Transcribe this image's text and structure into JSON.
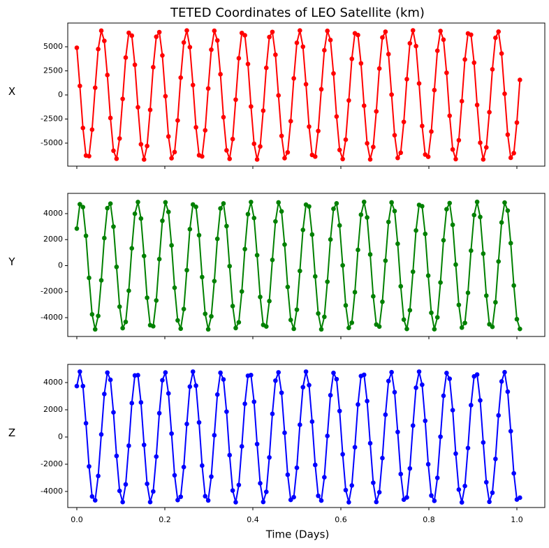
{
  "chart_data": {
    "type": "line",
    "title": "TETED Coordinates of LEO Satellite (km)",
    "xlabel": "Time (Days)",
    "xlim": [
      -0.0206,
      1.0635
    ],
    "xticks": [
      {
        "value": 0,
        "label": "0.0"
      },
      0.2,
      0.4,
      0.6,
      0.8,
      {
        "value": 1,
        "label": "1.0"
      }
    ],
    "x": [
      0,
      0.0069,
      0.0139,
      0.0208,
      0.0278,
      0.0347,
      0.0417,
      0.0486,
      0.0556,
      0.0625,
      0.0694,
      0.0764,
      0.0833,
      0.0903,
      0.0972,
      0.1042,
      0.1111,
      0.1181,
      0.125,
      0.1319,
      0.1389,
      0.1458,
      0.1528,
      0.1597,
      0.1667,
      0.1736,
      0.1806,
      0.1875,
      0.1944,
      0.2014,
      0.2083,
      0.2153,
      0.2222,
      0.2292,
      0.2361,
      0.2431,
      0.25,
      0.2569,
      0.2639,
      0.2708,
      0.2778,
      0.2847,
      0.2917,
      0.2986,
      0.3056,
      0.3125,
      0.3194,
      0.3264,
      0.3333,
      0.3403,
      0.3472,
      0.3542,
      0.3611,
      0.3681,
      0.375,
      0.3819,
      0.3889,
      0.3958,
      0.4028,
      0.4097,
      0.4167,
      0.4236,
      0.4306,
      0.4375,
      0.4444,
      0.4514,
      0.4583,
      0.4653,
      0.4722,
      0.4792,
      0.4861,
      0.4931,
      0.5,
      0.5069,
      0.5139,
      0.5208,
      0.5278,
      0.5347,
      0.5417,
      0.5486,
      0.5556,
      0.5625,
      0.5694,
      0.5764,
      0.5833,
      0.5903,
      0.5972,
      0.6042,
      0.6111,
      0.6181,
      0.625,
      0.6319,
      0.6389,
      0.6458,
      0.6528,
      0.6597,
      0.6667,
      0.6736,
      0.6806,
      0.6875,
      0.6944,
      0.7014,
      0.7083,
      0.7153,
      0.7222,
      0.7292,
      0.7361,
      0.7431,
      0.75,
      0.7569,
      0.7639,
      0.7708,
      0.7778,
      0.7847,
      0.7917,
      0.7986,
      0.8056,
      0.8125,
      0.8194,
      0.8264,
      0.8333,
      0.8403,
      0.8472,
      0.8542,
      0.8611,
      0.8681,
      0.875,
      0.8819,
      0.8889,
      0.8958,
      0.9028,
      0.9097,
      0.9167,
      0.9236,
      0.9306,
      0.9375,
      0.9444,
      0.9514,
      0.9583,
      0.9653,
      0.9722,
      0.9792,
      0.9861,
      0.9931,
      1.0,
      1.0069
    ],
    "panels": [
      {
        "ylabel": "X",
        "color": "#ff0000",
        "ylim": [
          -7391,
          7464
        ],
        "yticks": [
          -5000,
          -2500,
          0,
          2500,
          5000
        ],
        "values": [
          4900,
          940,
          -3430,
          -6290,
          -6350,
          -3600,
          750,
          4760,
          6670,
          5610,
          2070,
          -2390,
          -5790,
          -6620,
          -4520,
          -410,
          3880,
          6450,
          6160,
          3130,
          -1280,
          -5120,
          -6700,
          -5300,
          -1550,
          2880,
          6040,
          6520,
          4100,
          -130,
          -4310,
          -6570,
          -5930,
          -2650,
          1800,
          5450,
          6690,
          4960,
          1030,
          -3360,
          -6260,
          -6380,
          -3670,
          670,
          4700,
          6660,
          5660,
          2150,
          -2310,
          -5750,
          -6630,
          -4580,
          -490,
          3810,
          6430,
          6190,
          3210,
          -1200,
          -5070,
          -6700,
          -5350,
          -1630,
          2810,
          6010,
          6540,
          4170,
          -50,
          -4250,
          -6560,
          -5960,
          -2720,
          1720,
          5410,
          6690,
          5010,
          1110,
          -3290,
          -6230,
          -6400,
          -3740,
          590,
          4640,
          6650,
          5700,
          2230,
          -2240,
          -5710,
          -6650,
          -4640,
          -570,
          3750,
          6400,
          6220,
          3280,
          -1120,
          -5020,
          -6690,
          -5400,
          -1710,
          2740,
          5970,
          6560,
          4240,
          30,
          -4180,
          -6540,
          -6000,
          -2800,
          1640,
          5360,
          6700,
          5070,
          1190,
          -3220,
          -6190,
          -6420,
          -3800,
          500,
          4590,
          6640,
          5740,
          2300,
          -2160,
          -5660,
          -6660,
          -4700,
          -650,
          3680,
          6380,
          6250,
          3350,
          -1040,
          -4960,
          -6690,
          -5450,
          -1790,
          2660,
          5930,
          6570,
          4300,
          120,
          -4120,
          -6520,
          -6040,
          -2870,
          1560
        ]
      },
      {
        "ylabel": "Y",
        "color": "#008000",
        "ylim": [
          -5450,
          5557
        ],
        "yticks": [
          -4000,
          -2000,
          0,
          2000,
          4000
        ],
        "values": [
          2850,
          4720,
          4500,
          2290,
          -940,
          -3750,
          -4900,
          -3870,
          -1130,
          2120,
          4420,
          4770,
          3000,
          -100,
          -3160,
          -4810,
          -4330,
          -1930,
          1330,
          3990,
          4890,
          3620,
          740,
          -2470,
          -4580,
          -4660,
          -2680,
          500,
          3450,
          4870,
          4130,
          1560,
          -1700,
          -4210,
          -4850,
          -3340,
          -350,
          2800,
          4700,
          4520,
          2340,
          -880,
          -3710,
          -4900,
          -3900,
          -1190,
          2060,
          4400,
          4780,
          3040,
          -40,
          -3110,
          -4800,
          -4360,
          -1990,
          1270,
          3960,
          4890,
          3660,
          800,
          -2410,
          -4560,
          -4680,
          -2730,
          440,
          3400,
          4860,
          4170,
          1620,
          -1640,
          -4180,
          -4860,
          -3390,
          -410,
          2750,
          4690,
          4550,
          2390,
          -830,
          -3680,
          -4900,
          -3940,
          -1240,
          2010,
          4370,
          4790,
          3090,
          20,
          -3060,
          -4790,
          -4390,
          -2040,
          1210,
          3920,
          4900,
          3700,
          860,
          -2360,
          -4530,
          -4690,
          -2780,
          380,
          3360,
          4860,
          4200,
          1680,
          -1590,
          -4150,
          -4870,
          -3430,
          -470,
          2700,
          4670,
          4570,
          2440,
          -770,
          -3630,
          -4890,
          -3980,
          -1300,
          1950,
          4340,
          4810,
          3140,
          80,
          -3020,
          -4770,
          -4410,
          -2090,
          1150,
          3890,
          4900,
          3740,
          920,
          -2310,
          -4510,
          -4710,
          -2820,
          320,
          3320,
          4850,
          4230,
          1730,
          -1530,
          -4120,
          -4870
        ]
      },
      {
        "ylabel": "Z",
        "color": "#0000ff",
        "ylim": [
          -5179,
          5333
        ],
        "yticks": [
          -4000,
          -2000,
          0,
          2000,
          4000
        ],
        "values": [
          3740,
          4800,
          3740,
          1010,
          -2160,
          -4370,
          -4650,
          -2860,
          190,
          3160,
          4730,
          4200,
          1810,
          -1390,
          -3960,
          -4780,
          -3480,
          -640,
          2490,
          4520,
          4540,
          2540,
          -580,
          -3440,
          -4780,
          -4000,
          -1440,
          1750,
          4170,
          4740,
          3200,
          250,
          -2810,
          -4630,
          -4390,
          -2210,
          960,
          3700,
          4800,
          3770,
          1070,
          -2100,
          -4350,
          -4660,
          -2910,
          130,
          3120,
          4720,
          4230,
          1860,
          -1330,
          -3930,
          -4790,
          -3520,
          -690,
          2440,
          4500,
          4550,
          2590,
          -520,
          -3400,
          -4770,
          -4030,
          -1500,
          1700,
          4140,
          4750,
          3250,
          310,
          -2770,
          -4620,
          -4420,
          -2260,
          900,
          3660,
          4800,
          3810,
          1130,
          -2050,
          -4320,
          -4670,
          -2960,
          80,
          3070,
          4710,
          4250,
          1910,
          -1270,
          -3900,
          -4790,
          -3560,
          -750,
          2390,
          4480,
          4570,
          2640,
          -460,
          -3360,
          -4770,
          -4060,
          -1550,
          1640,
          4110,
          4760,
          3290,
          370,
          -2720,
          -4600,
          -4440,
          -2310,
          840,
          3620,
          4800,
          3840,
          1190,
          -2000,
          -4300,
          -4690,
          -3000,
          20,
          3030,
          4700,
          4280,
          1970,
          -1220,
          -3860,
          -4800,
          -3600,
          -810,
          2340,
          4450,
          4590,
          2690,
          -400,
          -3320,
          -4760,
          -4090,
          -1610,
          1590,
          4080,
          4760,
          3330,
          430,
          -2670,
          -4590,
          -4460
        ]
      }
    ]
  }
}
